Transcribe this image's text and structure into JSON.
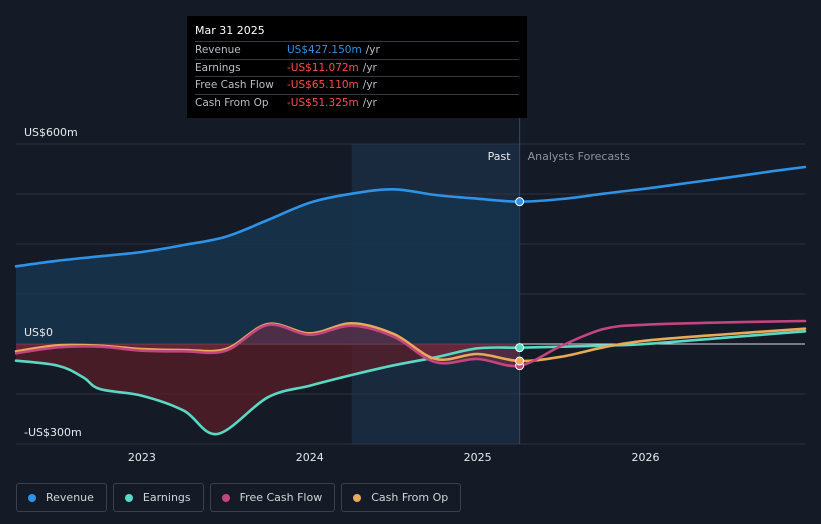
{
  "tooltip": {
    "date": "Mar 31 2025",
    "rows": [
      {
        "label": "Revenue",
        "value": "US$427.150m",
        "unit": "/yr",
        "color": "#2e93e6"
      },
      {
        "label": "Earnings",
        "value": "-US$11.072m",
        "unit": "/yr",
        "color": "#ff4d4d"
      },
      {
        "label": "Free Cash Flow",
        "value": "-US$65.110m",
        "unit": "/yr",
        "color": "#ff4d4d"
      },
      {
        "label": "Cash From Op",
        "value": "-US$51.325m",
        "unit": "/yr",
        "color": "#ff4d4d"
      }
    ]
  },
  "labels": {
    "past": "Past",
    "forecast": "Analysts Forecasts"
  },
  "colors": {
    "revenue": "#2e93e6",
    "earnings": "#59d9c4",
    "fcf": "#c2457f",
    "cfo": "#e8a95a",
    "negative_fill": "#5a1e28",
    "positive_fill": "#16344d"
  },
  "chart_data": {
    "type": "line",
    "title": "",
    "xlabel": "",
    "ylabel": "",
    "y_axis_labels": [
      "US$600m",
      "US$0",
      "-US$300m"
    ],
    "y_ticks": [
      600,
      0,
      -300
    ],
    "ylim": [
      -300,
      600
    ],
    "xlim": [
      2022.25,
      2026.95
    ],
    "x_ticks": [
      2023,
      2024,
      2025,
      2026
    ],
    "x_tick_labels": [
      "2023",
      "2024",
      "2025",
      "2026"
    ],
    "past_end": 2025.25,
    "highlight_start": 2024.25,
    "series": [
      {
        "name": "Revenue",
        "key": "revenue",
        "x": [
          2022.25,
          2022.5,
          2022.75,
          2023.0,
          2023.25,
          2023.5,
          2023.75,
          2024.0,
          2024.25,
          2024.5,
          2024.75,
          2025.0,
          2025.25,
          2025.5,
          2025.75,
          2026.0,
          2026.25,
          2026.5,
          2026.75,
          2026.95
        ],
        "values": [
          233,
          250,
          263,
          276,
          297,
          322,
          372,
          424,
          451,
          464,
          447,
          436,
          427,
          435,
          451,
          466,
          483,
          500,
          518,
          531
        ]
      },
      {
        "name": "Earnings",
        "key": "earnings",
        "x": [
          2022.25,
          2022.5,
          2022.65,
          2022.75,
          2023.0,
          2023.25,
          2023.45,
          2023.75,
          2024.0,
          2024.25,
          2024.5,
          2024.75,
          2025.0,
          2025.25,
          2025.5,
          2025.75,
          2026.0,
          2026.5,
          2026.95
        ],
        "values": [
          -50,
          -65,
          -100,
          -135,
          -155,
          -200,
          -270,
          -160,
          -125,
          -93,
          -64,
          -40,
          -13,
          -11,
          -8,
          -5,
          0,
          20,
          38
        ]
      },
      {
        "name": "Free Cash Flow",
        "key": "fcf",
        "x": [
          2022.25,
          2022.5,
          2022.75,
          2023.0,
          2023.25,
          2023.5,
          2023.75,
          2024.0,
          2024.25,
          2024.5,
          2024.75,
          2025.0,
          2025.25,
          2025.5,
          2025.75,
          2026.0,
          2026.5,
          2026.95
        ],
        "values": [
          -28,
          -10,
          -8,
          -20,
          -22,
          -20,
          57,
          28,
          55,
          22,
          -55,
          -45,
          -65,
          -5,
          45,
          58,
          65,
          69
        ]
      },
      {
        "name": "Cash From Op",
        "key": "cfo",
        "x": [
          2022.25,
          2022.5,
          2022.75,
          2023.0,
          2023.25,
          2023.5,
          2023.75,
          2024.0,
          2024.25,
          2024.5,
          2024.75,
          2025.0,
          2025.25,
          2025.5,
          2025.75,
          2026.0,
          2026.5,
          2026.95
        ],
        "values": [
          -22,
          -4,
          -5,
          -15,
          -18,
          -15,
          60,
          32,
          62,
          30,
          -45,
          -30,
          -51,
          -38,
          -10,
          10,
          30,
          46
        ]
      }
    ],
    "marker_x": 2025.25,
    "marker_values": {
      "revenue": 427,
      "earnings": -11,
      "fcf": -65,
      "cfo": -51
    }
  },
  "legend": [
    {
      "label": "Revenue",
      "key": "revenue"
    },
    {
      "label": "Earnings",
      "key": "earnings"
    },
    {
      "label": "Free Cash Flow",
      "key": "fcf"
    },
    {
      "label": "Cash From Op",
      "key": "cfo"
    }
  ]
}
